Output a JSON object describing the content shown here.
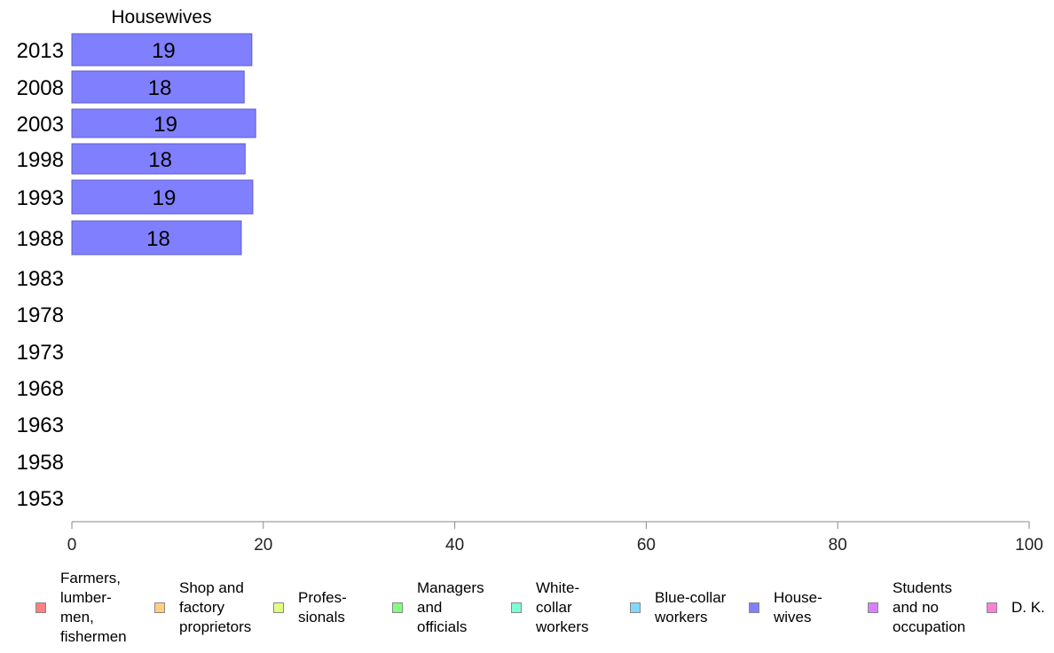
{
  "chart_data": {
    "type": "bar",
    "orientation": "horizontal",
    "title": "Housewives",
    "categories": [
      "2013",
      "2008",
      "2003",
      "1998",
      "1993",
      "1988",
      "1983",
      "1978",
      "1973",
      "1968",
      "1963",
      "1958",
      "1953"
    ],
    "series": [
      {
        "name": "House-\nwives",
        "color": "#8080ff",
        "values": [
          18.8,
          18.0,
          19.2,
          18.1,
          18.9,
          17.7,
          null,
          null,
          null,
          null,
          null,
          null,
          null
        ],
        "labels": [
          "19",
          "18",
          "19",
          "18",
          "19",
          "18",
          "",
          "",
          "",
          "",
          "",
          "",
          ""
        ]
      }
    ],
    "xlim": [
      0,
      100
    ],
    "xticks": [
      0,
      20,
      40,
      60,
      80,
      100
    ],
    "grid": false,
    "legend_position": "bottom",
    "legend": [
      {
        "label": "Farmers,\nlumber-\nmen,\nfishermen",
        "color": "#ff8080"
      },
      {
        "label": "Shop and\nfactory\nproprietors",
        "color": "#ffd080"
      },
      {
        "label": "Profes-\nsionals",
        "color": "#e0ff80"
      },
      {
        "label": "Managers\nand\nofficials",
        "color": "#80ff80"
      },
      {
        "label": "White-\ncollar\nworkers",
        "color": "#80ffd0"
      },
      {
        "label": "Blue-collar\nworkers",
        "color": "#80d8ff"
      },
      {
        "label": "House-\nwives",
        "color": "#8080ff"
      },
      {
        "label": "Students\nand no\noccupation",
        "color": "#d880ff"
      },
      {
        "label": "D. K.",
        "color": "#ff80d8"
      }
    ]
  }
}
